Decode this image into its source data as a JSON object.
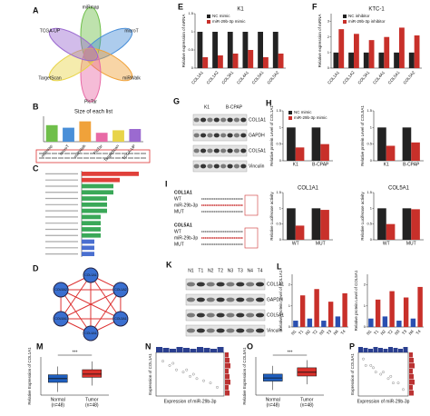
{
  "figure": {
    "A": {
      "letter": "A",
      "sets": [
        "miRmap",
        "microT",
        "miRWalk",
        "PicTar",
        "TargetScan",
        "TCGA-UP"
      ],
      "colors": [
        "#6fbf4a",
        "#4a8fd8",
        "#f0a23a",
        "#e86aa6",
        "#e8d44a",
        "#9b6ad0"
      ]
    },
    "D": {
      "letter": "D",
      "nodes": [
        "COL1A1",
        "COL1A2",
        "COL3A1",
        "COL4A1",
        "COL5A1",
        "COL5A2"
      ]
    },
    "G": {
      "letter": "G",
      "columns": [
        "K1",
        "B-CPAP"
      ],
      "rows": [
        "COL1A1",
        "GAPDH",
        "COL5A1",
        "Vinculin"
      ]
    },
    "I": {
      "letter": "I",
      "genes": [
        "COL1A1",
        "COL5A1"
      ],
      "rows": [
        "WT",
        "miR-29b-3p",
        "MUT"
      ]
    },
    "K": {
      "letter": "K",
      "lanes": [
        "N1",
        "T1",
        "N2",
        "T2",
        "N3",
        "T3",
        "N4",
        "T4"
      ],
      "rows": [
        "COL1A1",
        "GAPDH",
        "COL5A1",
        "Vinculin"
      ]
    }
  },
  "chart_data": [
    {
      "type": "bar",
      "panel": "B",
      "title": "Size of each list",
      "categories": [
        "miRmap",
        "microT",
        "miRWalk",
        "PicTar",
        "TargetScan",
        "TCGA-UP"
      ],
      "values": [
        1300,
        1100,
        1600,
        700,
        900,
        1000
      ],
      "colors": [
        "#6fbf4a",
        "#4a8fd8",
        "#f0a23a",
        "#e86aa6",
        "#e8d44a",
        "#9b6ad0"
      ],
      "ylim": [
        0,
        2000
      ]
    },
    {
      "type": "bar",
      "orientation": "horizontal",
      "panel": "C",
      "categories": [
        null,
        null,
        null,
        null,
        null,
        null,
        null,
        null,
        null,
        null,
        null,
        null,
        null,
        null
      ],
      "values": [
        9,
        6,
        5,
        5,
        4,
        4,
        4,
        3,
        3,
        3,
        3,
        2,
        2,
        2
      ],
      "colors": [
        "#e0403a",
        "#e0403a",
        "#3aa858",
        "#3aa858",
        "#3aa858",
        "#3aa858",
        "#3aa858",
        "#3aa858",
        "#3aa858",
        "#3aa858",
        "#3aa858",
        "#4a6fd0",
        "#4a6fd0",
        "#4a6fd0"
      ],
      "xlim": [
        0,
        10
      ]
    },
    {
      "type": "bar",
      "panel": "E",
      "title": "K1",
      "ylabel": "Relative expression of mRNA",
      "categories": [
        "COL1A1",
        "COL1A2",
        "COL3A1",
        "COL4A1",
        "COL5A1",
        "COL5A2"
      ],
      "series": [
        {
          "name": "NC mimic",
          "color": "#222222",
          "values": [
            1,
            1,
            1,
            1,
            1,
            1
          ]
        },
        {
          "name": "miR-29b-3p mimic",
          "color": "#c8302a",
          "values": [
            0.3,
            0.35,
            0.4,
            0.5,
            0.3,
            0.4
          ]
        }
      ],
      "ylim": [
        0,
        1.5
      ],
      "yticks": [
        0,
        0.5,
        1,
        1.5
      ]
    },
    {
      "type": "bar",
      "panel": "F",
      "title": "KTC-1",
      "ylabel": "Relative expression of mRNA",
      "categories": [
        "COL1A1",
        "COL1A2",
        "COL3A1",
        "COL4A1",
        "COL5A1",
        "COL5A2"
      ],
      "series": [
        {
          "name": "NC inhibitor",
          "color": "#222222",
          "values": [
            1,
            1,
            1,
            1,
            1,
            1
          ]
        },
        {
          "name": "miR-29b-3p inhibitor",
          "color": "#c8302a",
          "values": [
            2.5,
            2.2,
            1.8,
            2,
            2.6,
            2.1
          ]
        }
      ],
      "ylim": [
        0,
        3.5
      ],
      "yticks": [
        0,
        1,
        2,
        3
      ]
    },
    {
      "type": "bar",
      "panel": "H",
      "ylabel": "Relative protein Level of COL1A1",
      "categories": [
        "K1",
        "B-CPAP"
      ],
      "series": [
        {
          "name": "NC mimic",
          "color": "#222222",
          "values": [
            1,
            1
          ]
        },
        {
          "name": "miR-29b-3p mimic",
          "color": "#c8302a",
          "values": [
            0.4,
            0.5
          ]
        }
      ],
      "ylim": [
        0,
        1.5
      ],
      "yticks": [
        0,
        0.5,
        1,
        1.5
      ]
    },
    {
      "type": "bar",
      "ylabel": "Relative protein Level of COL5A1",
      "categories": [
        "K1",
        "B-CPAP"
      ],
      "series": [
        {
          "name": "NC mimic",
          "color": "#222222",
          "values": [
            1,
            1
          ]
        },
        {
          "name": "miR-29b-3p mimic",
          "color": "#c8302a",
          "values": [
            0.45,
            0.55
          ]
        }
      ],
      "ylim": [
        0,
        1.5
      ],
      "yticks": [
        0,
        0.5,
        1,
        1.5
      ]
    },
    {
      "type": "bar",
      "title": "COL1A1",
      "ylabel": "Relative Luciferase activity",
      "categories": [
        "WT",
        "MUT"
      ],
      "series": [
        {
          "name": "NC mimic",
          "color": "#222222",
          "values": [
            1,
            1
          ]
        },
        {
          "name": "miR-29b-3p mimic",
          "color": "#c8302a",
          "values": [
            0.45,
            0.95
          ]
        }
      ],
      "ylim": [
        0,
        1.5
      ],
      "yticks": [
        0,
        0.5,
        1,
        1.5
      ]
    },
    {
      "type": "bar",
      "title": "COL5A1",
      "ylabel": "Relative Luciferase activity",
      "categories": [
        "WT",
        "MUT"
      ],
      "series": [
        {
          "name": "NC mimic",
          "color": "#222222",
          "values": [
            1,
            1
          ]
        },
        {
          "name": "miR-29b-3p mimic",
          "color": "#c8302a",
          "values": [
            0.5,
            0.97
          ]
        }
      ],
      "ylim": [
        0,
        1.5
      ],
      "yticks": [
        0,
        0.5,
        1,
        1.5
      ]
    },
    {
      "type": "bar",
      "panel": "L",
      "ylabel": "Relative protein Level of COL1A1",
      "categories": [
        "N1",
        "T1",
        "N2",
        "T2",
        "N3",
        "T3",
        "N4",
        "T4"
      ],
      "values": [
        0.3,
        1.5,
        0.4,
        1.8,
        0.3,
        1.2,
        0.5,
        1.6
      ],
      "colors": [
        "#2a4fb0",
        "#c8302a",
        "#2a4fb0",
        "#c8302a",
        "#2a4fb0",
        "#c8302a",
        "#2a4fb0",
        "#c8302a"
      ],
      "ylim": [
        0,
        2.5
      ],
      "yticks": [
        0,
        1,
        2
      ]
    },
    {
      "type": "bar",
      "ylabel": "Relative protein Level of COL5A1",
      "categories": [
        "N1",
        "T1",
        "N2",
        "T2",
        "N3",
        "T3",
        "N4",
        "T4"
      ],
      "values": [
        0.4,
        1.3,
        0.5,
        1.7,
        0.3,
        1.4,
        0.4,
        1.9
      ],
      "colors": [
        "#2a4fb0",
        "#c8302a",
        "#2a4fb0",
        "#c8302a",
        "#2a4fb0",
        "#c8302a",
        "#2a4fb0",
        "#c8302a"
      ],
      "ylim": [
        0,
        2.5
      ],
      "yticks": [
        0,
        1,
        2
      ]
    },
    {
      "type": "box",
      "panel": "M",
      "ylabel": "Relative Expression of COL1A1",
      "categories": [
        "Normal",
        "Tumor"
      ],
      "counts": [
        "(n=48)",
        "(n=48)"
      ],
      "colors": [
        "#1f5fbf",
        "#d9312b"
      ],
      "p_label": "***",
      "boxes": [
        {
          "min": -1.5,
          "q1": 0,
          "median": 0.6,
          "q3": 1.2,
          "max": 2.5
        },
        {
          "min": -0.5,
          "q1": 0.8,
          "median": 1.3,
          "q3": 2,
          "max": 3.3
        }
      ],
      "ylim": [
        -2,
        4
      ]
    },
    {
      "type": "scatter",
      "panel": "N",
      "xlabel": "Expression of miR-29b-3p",
      "ylabel": "Expression of COL1A1",
      "color": "#888888",
      "x": [
        0.1,
        0.2,
        0.25,
        0.3,
        0.4,
        0.45,
        0.5,
        0.55,
        0.6,
        0.7,
        0.8,
        0.9
      ],
      "y": [
        0.8,
        0.7,
        0.75,
        0.6,
        0.55,
        0.6,
        0.45,
        0.5,
        0.4,
        0.35,
        0.3,
        0.2
      ],
      "xlim": [
        0,
        1
      ],
      "ylim": [
        0,
        1
      ]
    },
    {
      "type": "box",
      "panel": "O",
      "ylabel": "Relative Expression of COL5A1",
      "categories": [
        "Normal",
        "Tumor"
      ],
      "counts": [
        "(n=48)",
        "(n=48)"
      ],
      "colors": [
        "#1f5fbf",
        "#d9312b"
      ],
      "p_label": "***",
      "boxes": [
        {
          "min": -1.2,
          "q1": 0.2,
          "median": 0.7,
          "q3": 1.3,
          "max": 2.6
        },
        {
          "min": -0.3,
          "q1": 1,
          "median": 1.6,
          "q3": 2.3,
          "max": 3.5
        }
      ],
      "ylim": [
        -2,
        4
      ]
    },
    {
      "type": "scatter",
      "panel": "P",
      "xlabel": "Expression of miR-29b-3p",
      "ylabel": "Expression of COL5A1",
      "color": "#888888",
      "x": [
        0.1,
        0.15,
        0.25,
        0.3,
        0.35,
        0.45,
        0.5,
        0.6,
        0.65,
        0.7,
        0.8,
        0.9
      ],
      "y": [
        0.85,
        0.7,
        0.7,
        0.65,
        0.55,
        0.5,
        0.55,
        0.4,
        0.45,
        0.3,
        0.3,
        0.15
      ],
      "xlim": [
        0,
        1
      ],
      "ylim": [
        0,
        1
      ]
    }
  ]
}
